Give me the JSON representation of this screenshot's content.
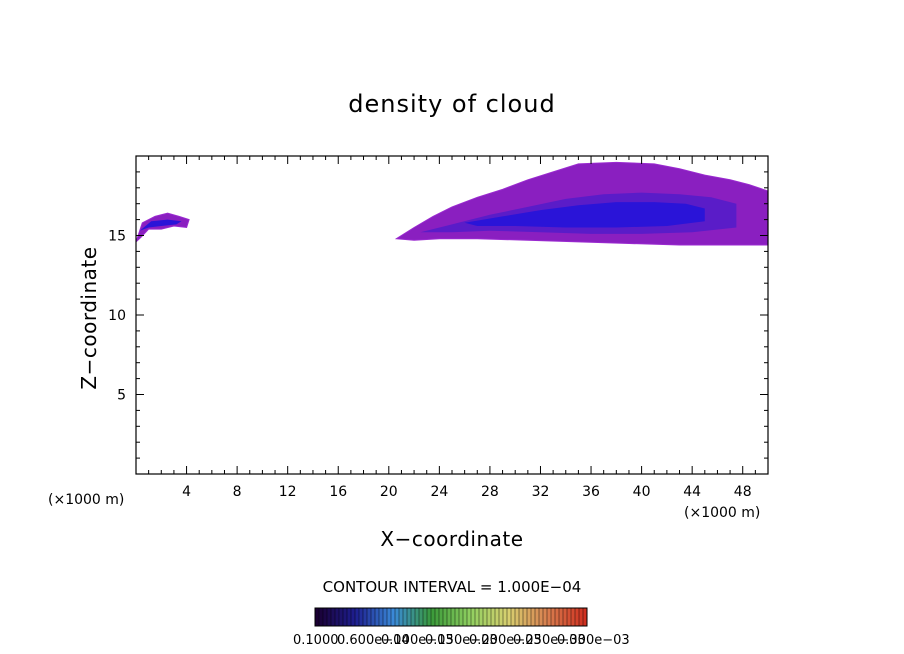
{
  "chart_data": {
    "type": "heatmap",
    "title": "density of cloud",
    "xlabel": "X−coordinate",
    "ylabel": "Z−coordinate",
    "x_unit_left": "(×1000 m)",
    "x_unit_right": "(×1000 m)",
    "xlim": [
      0,
      50
    ],
    "ylim": [
      0,
      20
    ],
    "x_ticks": [
      "4",
      "8",
      "12",
      "16",
      "20",
      "24",
      "28",
      "32",
      "36",
      "40",
      "44",
      "48"
    ],
    "x_tick_values": [
      4,
      8,
      12,
      16,
      20,
      24,
      28,
      32,
      36,
      40,
      44,
      48
    ],
    "y_ticks": [
      "5",
      "10",
      "15"
    ],
    "y_tick_values": [
      5,
      10,
      15
    ],
    "contour_interval": "CONTOUR INTERVAL = 1.000E−04",
    "colorbar_labels": [
      "0.1000",
      "0.600e−04",
      "0.100e−03",
      "0.150e−03",
      "0.200e−03",
      "0.250e−03",
      "0.300e−03"
    ],
    "colorbar_colors": [
      "#1a0033",
      "#1e1e90",
      "#3a8ad8",
      "#3a9a3a",
      "#90d060",
      "#d8d070",
      "#d88050",
      "#d03020"
    ],
    "cloud_regions": [
      {
        "name": "left cloud",
        "outline": [
          [
            0,
            14.6
          ],
          [
            0.5,
            15.8
          ],
          [
            1.5,
            16.2
          ],
          [
            2.5,
            16.4
          ],
          [
            3.4,
            16.2
          ],
          [
            4.2,
            16.0
          ],
          [
            4.0,
            15.5
          ],
          [
            3.0,
            15.6
          ],
          [
            2.0,
            15.4
          ],
          [
            1.0,
            15.4
          ],
          [
            0.4,
            14.9
          ]
        ],
        "core": [
          [
            0.3,
            15.3
          ],
          [
            1.2,
            15.9
          ],
          [
            2.5,
            16.0
          ],
          [
            3.6,
            15.9
          ],
          [
            3.2,
            15.7
          ],
          [
            2.0,
            15.6
          ],
          [
            1.0,
            15.5
          ]
        ]
      },
      {
        "name": "main cloud",
        "outline": [
          [
            20.6,
            14.8
          ],
          [
            22,
            15.5
          ],
          [
            23.5,
            16.2
          ],
          [
            25,
            16.8
          ],
          [
            27,
            17.4
          ],
          [
            29,
            17.9
          ],
          [
            31,
            18.5
          ],
          [
            33,
            19.0
          ],
          [
            35,
            19.5
          ],
          [
            38,
            19.6
          ],
          [
            41,
            19.5
          ],
          [
            43,
            19.2
          ],
          [
            45,
            18.8
          ],
          [
            47,
            18.5
          ],
          [
            48.5,
            18.2
          ],
          [
            50,
            17.8
          ],
          [
            50,
            14.4
          ],
          [
            47,
            14.4
          ],
          [
            43,
            14.4
          ],
          [
            39,
            14.5
          ],
          [
            35,
            14.6
          ],
          [
            31,
            14.7
          ],
          [
            27,
            14.8
          ],
          [
            24,
            14.8
          ],
          [
            22,
            14.7
          ]
        ],
        "mid": [
          [
            22.5,
            15.2
          ],
          [
            25,
            15.7
          ],
          [
            28,
            16.3
          ],
          [
            31,
            16.8
          ],
          [
            34,
            17.3
          ],
          [
            37,
            17.6
          ],
          [
            40,
            17.7
          ],
          [
            43,
            17.6
          ],
          [
            45.5,
            17.4
          ],
          [
            47.5,
            17.0
          ],
          [
            47.5,
            15.5
          ],
          [
            44,
            15.2
          ],
          [
            40,
            15.1
          ],
          [
            36,
            15.1
          ],
          [
            32,
            15.2
          ],
          [
            28,
            15.3
          ],
          [
            25,
            15.2
          ]
        ],
        "core": [
          [
            26,
            15.8
          ],
          [
            29,
            16.2
          ],
          [
            32,
            16.6
          ],
          [
            35,
            16.9
          ],
          [
            38,
            17.1
          ],
          [
            41,
            17.1
          ],
          [
            43.5,
            17.0
          ],
          [
            45,
            16.7
          ],
          [
            45,
            15.9
          ],
          [
            42,
            15.6
          ],
          [
            38,
            15.5
          ],
          [
            34,
            15.5
          ],
          [
            30,
            15.6
          ],
          [
            27,
            15.6
          ]
        ]
      }
    ]
  }
}
